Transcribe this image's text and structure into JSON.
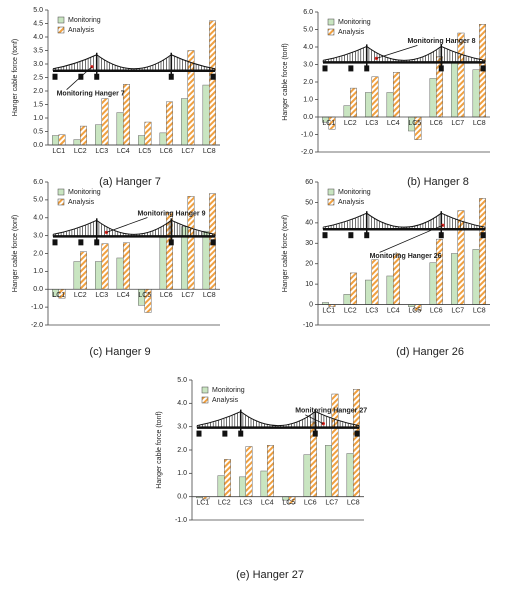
{
  "chart_data": [
    {
      "type": "bar",
      "caption": "(a)  Hanger 7",
      "ylabel": "Hanger cable force (tonf)",
      "annotation": "Monitoring Hanger 7",
      "categories": [
        "LC1",
        "LC2",
        "LC3",
        "LC4",
        "LC5",
        "LC6",
        "LC7",
        "LC8"
      ],
      "series": [
        {
          "name": "Monitoring",
          "color": "#c9e5c1",
          "values": [
            0.35,
            0.2,
            0.75,
            1.2,
            0.35,
            0.45,
            1.72,
            2.22
          ]
        },
        {
          "name": "Analysis",
          "color": "#f0a040",
          "hatch": true,
          "values": [
            0.38,
            0.7,
            1.72,
            2.25,
            0.85,
            1.6,
            3.5,
            4.6
          ]
        }
      ],
      "ylim": [
        0,
        5
      ],
      "yticks": [
        {
          "value": 0,
          "label": "0.0"
        },
        0.5,
        {
          "value": 1,
          "label": "1.0"
        },
        1.5,
        {
          "value": 2,
          "label": "2.0"
        },
        2.5,
        {
          "value": 3,
          "label": "3.0"
        },
        3.5,
        {
          "value": 4,
          "label": "4.0"
        },
        4.5,
        {
          "value": 5,
          "label": "5.0"
        }
      ]
    },
    {
      "type": "bar",
      "caption": "(b)  Hanger 8",
      "ylabel": "Hanger cable force (tonf)",
      "annotation": "Monitoring Hanger 8",
      "categories": [
        "LC1",
        "LC2",
        "LC3",
        "LC4",
        "LC5",
        "LC6",
        "LC7",
        "LC8"
      ],
      "series": [
        {
          "name": "Monitoring",
          "color": "#c9e5c1",
          "values": [
            -0.3,
            0.65,
            1.4,
            1.4,
            -0.8,
            2.2,
            3.1,
            2.7
          ]
        },
        {
          "name": "Analysis",
          "color": "#f0a040",
          "hatch": true,
          "values": [
            -0.7,
            1.65,
            2.3,
            2.55,
            -1.3,
            3.45,
            4.8,
            5.3
          ]
        }
      ],
      "ylim": [
        -2,
        6
      ],
      "yticks": [
        {
          "value": -2,
          "label": "-2.0"
        },
        {
          "value": -1,
          "label": "-1.0"
        },
        {
          "value": 0,
          "label": "0.0"
        },
        {
          "value": 1,
          "label": "1.0"
        },
        {
          "value": 2,
          "label": "2.0"
        },
        {
          "value": 3,
          "label": "3.0"
        },
        {
          "value": 4,
          "label": "4.0"
        },
        {
          "value": 5,
          "label": "5.0"
        },
        {
          "value": 6,
          "label": "6.0"
        }
      ]
    },
    {
      "type": "bar",
      "caption": "(c)  Hanger 9",
      "ylabel": "Hanger cable force (tonf)",
      "annotation": "Monitoring Hanger 9",
      "categories": [
        "LC1",
        "LC2",
        "LC3",
        "LC4",
        "LC5",
        "LC6",
        "LC7",
        "LC8"
      ],
      "series": [
        {
          "name": "Monitoring",
          "color": "#c9e5c1",
          "values": [
            -0.4,
            1.55,
            1.55,
            1.75,
            -0.9,
            2.9,
            3.5,
            3.25
          ]
        },
        {
          "name": "Analysis",
          "color": "#f0a040",
          "hatch": true,
          "values": [
            -0.5,
            2.1,
            2.55,
            2.6,
            -1.3,
            4.3,
            5.2,
            5.35
          ]
        }
      ],
      "ylim": [
        -2,
        6
      ],
      "yticks": [
        {
          "value": -2,
          "label": "-2.0"
        },
        {
          "value": -1,
          "label": "-1.0"
        },
        {
          "value": 0,
          "label": "0.0"
        },
        {
          "value": 1,
          "label": "1.0"
        },
        {
          "value": 2,
          "label": "2.0"
        },
        {
          "value": 3,
          "label": "3.0"
        },
        {
          "value": 4,
          "label": "4.0"
        },
        {
          "value": 5,
          "label": "5.0"
        },
        {
          "value": 6,
          "label": "6.0"
        }
      ]
    },
    {
      "type": "bar",
      "caption": "(d)  Hanger 26",
      "ylabel": "Hanger cable force (tonf)",
      "annotation": "Monitoring Hanger 26",
      "categories": [
        "LC1",
        "LC2",
        "LC3",
        "LC4",
        "LC5",
        "LC6",
        "LC7",
        "LC8"
      ],
      "series": [
        {
          "name": "Monitoring",
          "color": "#c9e5c1",
          "values": [
            1,
            5,
            12,
            14,
            -1,
            20.5,
            25,
            27
          ]
        },
        {
          "name": "Analysis",
          "color": "#f0a040",
          "hatch": true,
          "values": [
            -1,
            15.5,
            22,
            25,
            -3,
            32,
            46,
            52
          ]
        }
      ],
      "ylim": [
        -10,
        60
      ],
      "yticks": [
        -10,
        0,
        10,
        20,
        30,
        40,
        50,
        60
      ]
    },
    {
      "type": "bar",
      "caption": "(e)  Hanger 27",
      "ylabel": "Hanger cable force (tonf)",
      "annotation": "Monitoring Hanger 27",
      "categories": [
        "LC1",
        "LC2",
        "LC3",
        "LC4",
        "LC5",
        "LC6",
        "LC7",
        "LC8"
      ],
      "series": [
        {
          "name": "Monitoring",
          "color": "#c9e5c1",
          "values": [
            -0.05,
            0.9,
            0.85,
            1.1,
            -0.15,
            1.8,
            2.2,
            1.85
          ]
        },
        {
          "name": "Analysis",
          "color": "#f0a040",
          "hatch": true,
          "values": [
            -0.1,
            1.6,
            2.15,
            2.2,
            -0.3,
            3.2,
            4.4,
            4.6
          ]
        }
      ],
      "ylim": [
        -1,
        5
      ],
      "yticks": [
        {
          "value": -1,
          "label": "-1.0"
        },
        {
          "value": 0,
          "label": "0.0"
        },
        {
          "value": 1,
          "label": "1.0"
        },
        {
          "value": 2,
          "label": "2.0"
        },
        {
          "value": 3,
          "label": "3.0"
        },
        {
          "value": 4,
          "label": "4.0"
        },
        {
          "value": 5,
          "label": "5.0"
        }
      ]
    }
  ]
}
